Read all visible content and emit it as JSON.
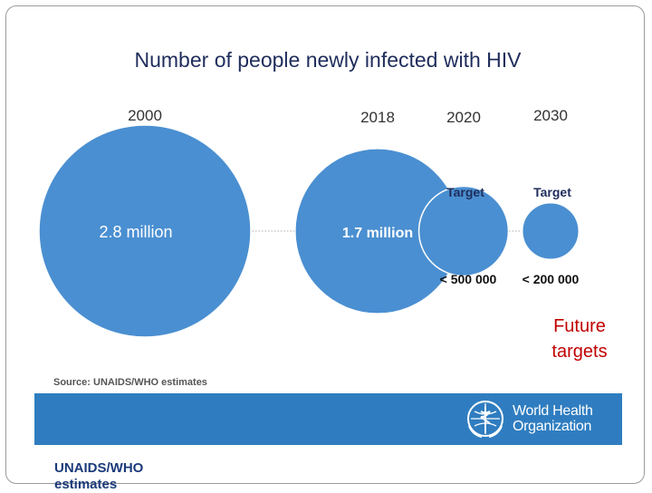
{
  "slide": {
    "annotation_line1": "Future",
    "annotation_line2": "targets",
    "bottom_note_line1": "UNAIDS/WHO",
    "bottom_note_line2": "estimates"
  },
  "who": {
    "line1": "World Health",
    "line2": "Organization"
  },
  "colors": {
    "bubble": "#4a8fd1",
    "bubble_edge": "#ffffff",
    "title": "#1f2d5c",
    "year": "#333333",
    "footer": "#2f7dc0",
    "annotation": "#c00000",
    "dotted_line": "#aaaaaa"
  },
  "chart_data": {
    "type": "bubble",
    "title": "Number of people newly infected with HIV",
    "source": "Source: UNAIDS/WHO  estimates",
    "categories": [
      "2000",
      "2018",
      "2020",
      "2030"
    ],
    "values": [
      2800000,
      1700000,
      500000,
      200000
    ],
    "value_labels": [
      "2.8 million",
      "1.7 million",
      "< 500 000",
      "< 200 000"
    ],
    "target_labels": [
      "",
      "",
      "Target",
      "Target"
    ]
  }
}
